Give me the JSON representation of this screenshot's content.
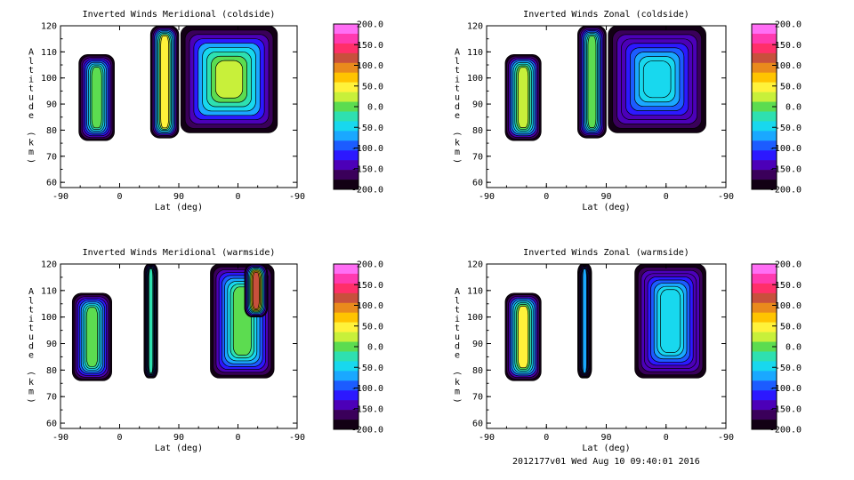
{
  "footer": "2012177v01 Wed Aug 10 09:40:01 2016",
  "colorbar_labels": [
    "200.0",
    "150.0",
    "100.0",
    "50.0",
    "0.0",
    "-50.0",
    "-100.0",
    "-150.0",
    "-200.0"
  ],
  "colorbar_colors": [
    "#ff6ef4",
    "#ff3ab0",
    "#ff2f6a",
    "#c8503c",
    "#e98a1c",
    "#ffc400",
    "#fff23a",
    "#c8f03a",
    "#5cdc50",
    "#2ee0b0",
    "#18d8ee",
    "#1aa8ff",
    "#1c5cff",
    "#2c18ff",
    "#4c00b8",
    "#3a005a",
    "#120014"
  ],
  "chart_data": [
    {
      "type": "heatmap",
      "title": "Inverted Winds Meridional (coldside)",
      "xlabel": "Lat (deg)",
      "ylabel": "Altitude (km)",
      "x_ticks": [
        "-90",
        "0",
        "90",
        "0",
        "-90"
      ],
      "y_ticks": [
        "60",
        "70",
        "80",
        "90",
        "100",
        "110",
        "120"
      ],
      "ylim": [
        58,
        120
      ],
      "zlim": [
        -200,
        200
      ],
      "regions": [
        {
          "x": [
            -62,
            -8
          ],
          "y": [
            76,
            109
          ],
          "peak": -10
        },
        {
          "x": [
            47,
            90
          ],
          "y": [
            77,
            120
          ],
          "peak": 45
        },
        {
          "x": [
            93,
            240
          ],
          "y": [
            79,
            120
          ],
          "peak": 30
        }
      ]
    },
    {
      "type": "heatmap",
      "title": "Inverted Winds Zonal (coldside)",
      "xlabel": "Lat (deg)",
      "ylabel": "Altitude (km)",
      "x_ticks": [
        "-90",
        "0",
        "90",
        "0",
        "-90"
      ],
      "y_ticks": [
        "60",
        "70",
        "80",
        "90",
        "100",
        "110",
        "120"
      ],
      "ylim": [
        58,
        120
      ],
      "zlim": [
        -200,
        200
      ],
      "regions": [
        {
          "x": [
            -62,
            -8
          ],
          "y": [
            76,
            109
          ],
          "peak": 35
        },
        {
          "x": [
            47,
            90
          ],
          "y": [
            77,
            120
          ],
          "peak": -10
        },
        {
          "x": [
            93,
            240
          ],
          "y": [
            79,
            120
          ],
          "peak": -40
        }
      ]
    },
    {
      "type": "heatmap",
      "title": "Inverted Winds Meridional (warmside)",
      "xlabel": "Lat (deg)",
      "ylabel": "Altitude (km)",
      "x_ticks": [
        "-90",
        "0",
        "90",
        "0",
        "-90"
      ],
      "y_ticks": [
        "60",
        "70",
        "80",
        "90",
        "100",
        "110",
        "120"
      ],
      "ylim": [
        58,
        120
      ],
      "zlim": [
        -200,
        200
      ],
      "regions": [
        {
          "x": [
            -72,
            -12
          ],
          "y": [
            76,
            109
          ],
          "peak": 10
        },
        {
          "x": [
            37,
            58
          ],
          "y": [
            77,
            120
          ],
          "peak": -20
        },
        {
          "x": [
            138,
            235
          ],
          "y": [
            77,
            120
          ],
          "peak": -10
        },
        {
          "x": [
            190,
            225
          ],
          "y": [
            100,
            120
          ],
          "peak": 120
        }
      ]
    },
    {
      "type": "heatmap",
      "title": "Inverted Winds Zonal (warmside)",
      "xlabel": "Lat (deg)",
      "ylabel": "Altitude (km)",
      "x_ticks": [
        "-90",
        "0",
        "90",
        "0",
        "-90"
      ],
      "y_ticks": [
        "60",
        "70",
        "80",
        "90",
        "100",
        "110",
        "120"
      ],
      "ylim": [
        58,
        120
      ],
      "zlim": [
        -200,
        200
      ],
      "regions": [
        {
          "x": [
            -62,
            -8
          ],
          "y": [
            76,
            109
          ],
          "peak": 40
        },
        {
          "x": [
            47,
            68
          ],
          "y": [
            77,
            120
          ],
          "peak": -80
        },
        {
          "x": [
            133,
            240
          ],
          "y": [
            77,
            120
          ],
          "peak": -40
        }
      ]
    }
  ]
}
